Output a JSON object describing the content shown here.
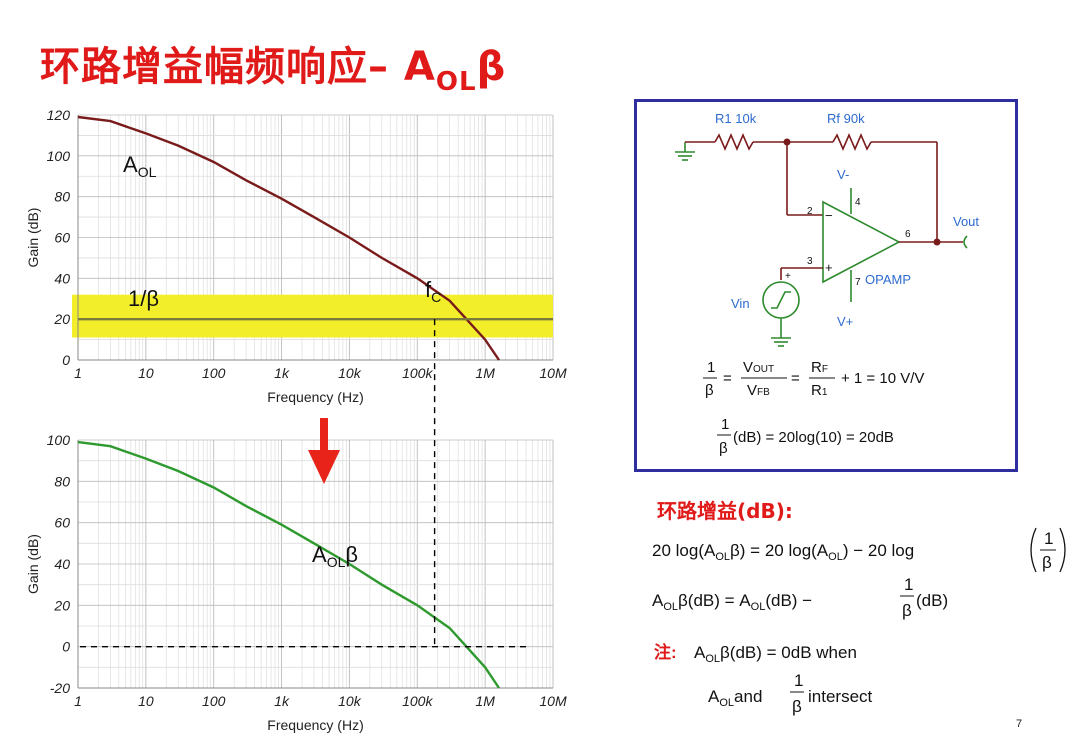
{
  "title": {
    "main": "环路增益幅频响应– A",
    "sub": "OL",
    "tail": "β"
  },
  "colors": {
    "title": "#e01919",
    "aol": "#7a1b1b",
    "loop": "#2e9a2e",
    "beta_band": "#f3ee2a",
    "beta_line": "#7a7a3a",
    "arrow": "#e8231a",
    "box": "#2e2e9e"
  },
  "chart_data": [
    {
      "type": "line",
      "xscale": "log",
      "xlim": [
        1,
        10000000
      ],
      "ylim": [
        0,
        120
      ],
      "xlabel": "Frequency (Hz)",
      "ylabel": "Gain (dB)",
      "xticks": [
        "1",
        "10",
        "100",
        "1k",
        "10k",
        "100k",
        "1M",
        "10M"
      ],
      "yticks": [
        "0",
        "20",
        "40",
        "60",
        "80",
        "100",
        "120"
      ],
      "series": [
        {
          "name": "AOL",
          "label_main": "A",
          "label_sub": "OL",
          "x": [
            1,
            3,
            10,
            30,
            100,
            300,
            1000,
            3000,
            10000,
            30000,
            100000,
            300000,
            1000000,
            1600000
          ],
          "y": [
            119,
            117,
            111,
            105,
            97,
            88,
            79,
            70,
            60,
            50,
            40,
            29,
            10,
            0
          ]
        },
        {
          "name": "1/β",
          "label_main": "1/β",
          "x": [
            1,
            10000000
          ],
          "y": [
            20,
            20
          ]
        }
      ],
      "band": {
        "ymin": 11,
        "ymax": 32
      },
      "annotation": {
        "main": "f",
        "sub": "C",
        "x": 180000,
        "y": 20
      }
    },
    {
      "type": "line",
      "xscale": "log",
      "xlim": [
        1,
        10000000
      ],
      "ylim": [
        -20,
        100
      ],
      "xlabel": "Frequency (Hz)",
      "ylabel": "Gain (dB)",
      "xticks": [
        "1",
        "10",
        "100",
        "1k",
        "10k",
        "100k",
        "1M",
        "10M"
      ],
      "yticks": [
        "-20",
        "0",
        "20",
        "40",
        "60",
        "80",
        "100"
      ],
      "series": [
        {
          "name": "AOLβ",
          "label_main": "A",
          "label_sub": "OL",
          "label_tail": "β",
          "x": [
            1,
            3,
            10,
            30,
            100,
            300,
            1000,
            3000,
            10000,
            30000,
            100000,
            300000,
            1000000,
            1600000
          ],
          "y": [
            99,
            97,
            91,
            85,
            77,
            68,
            59,
            50,
            40,
            30,
            20,
            9,
            -10,
            -20
          ]
        }
      ],
      "annotation": {
        "x": 180000,
        "y": 0
      }
    }
  ],
  "circuit": {
    "r1": "R1 10k",
    "rf": "Rf 90k",
    "vneg": "V-",
    "vpos": "V+",
    "vout": "Vout",
    "vin": "Vin",
    "opamp": "OPAMP",
    "pin2": "2",
    "pin3": "3",
    "pin4": "4",
    "pin6": "6",
    "pin7": "7",
    "minus": "−",
    "plus": "+"
  },
  "equations": {
    "eq1": {
      "lhs_num": "1",
      "lhs_den": "β",
      "f1_num": "V",
      "f1_num_sub": "OUT",
      "f1_den": "V",
      "f1_den_sub": "FB",
      "f2_num": "R",
      "f2_num_sub": "F",
      "f2_den": "R",
      "f2_den_sub": "1",
      "tail": "+ 1 = 10 V/V"
    },
    "eq2": {
      "num": "1",
      "den": "β",
      "tail": "(dB) = 20log(10) = 20dB"
    }
  },
  "loop_gain": {
    "heading": "环路增益(dB):",
    "f1": {
      "a": "20 log(A",
      "a_sub": "OL",
      "b": "β) = 20 log(A",
      "b_sub": "OL",
      "c": ") − 20 log",
      "num": "1",
      "den": "β"
    },
    "f2": {
      "a": "A",
      "a_sub": "OL",
      "b": "β(dB) = A",
      "b_sub": "OL",
      "c": "(dB) −",
      "num": "1",
      "den": "β",
      "d": "(dB)"
    },
    "note_label": "注:",
    "f3": {
      "a": "A",
      "a_sub": "OL",
      "b": "β(dB) = 0dB when"
    },
    "f4": {
      "a": "A",
      "a_sub": "OL",
      "b": "and",
      "num": "1",
      "den": "β",
      "c": "intersect"
    }
  },
  "page_number": "7"
}
